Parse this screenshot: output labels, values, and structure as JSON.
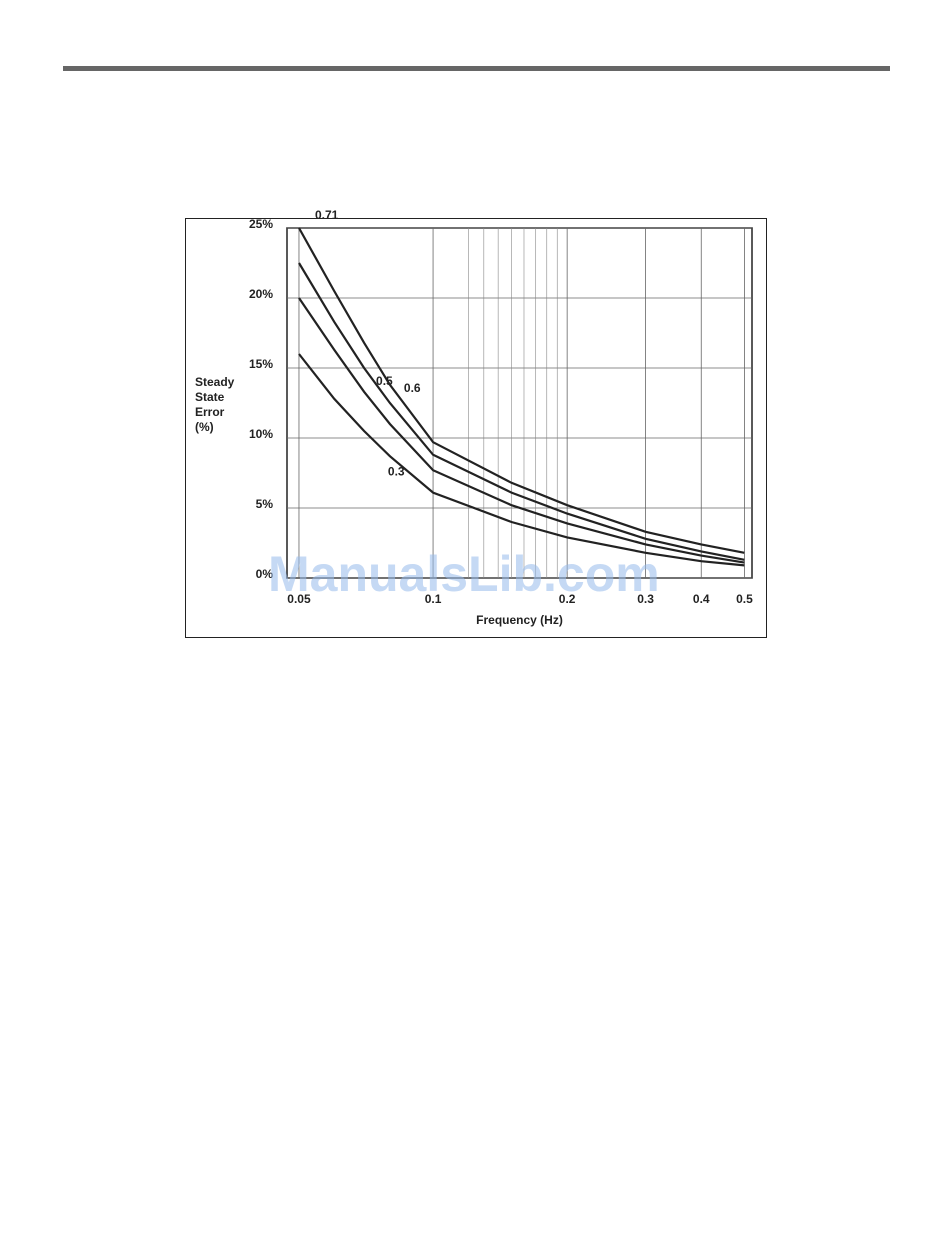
{
  "watermark": "ManualsLib.com",
  "chart_data": {
    "type": "line",
    "x_label": "Frequency (Hz)",
    "y_label": "Steady State Error (%)",
    "x": [
      0.05,
      0.06,
      0.07,
      0.08,
      0.1,
      0.15,
      0.2,
      0.3,
      0.4,
      0.5
    ],
    "series": [
      {
        "name": "0.71",
        "color": "#222222",
        "values": [
          25,
          20.5,
          16.8,
          13.8,
          9.7,
          6.8,
          5.2,
          3.3,
          2.4,
          1.8
        ]
      },
      {
        "name": "0.6",
        "color": "#222222",
        "values": [
          22.5,
          18.3,
          15,
          12.5,
          8.8,
          6.1,
          4.6,
          2.8,
          1.9,
          1.3
        ]
      },
      {
        "name": "0.5",
        "color": "#222222",
        "values": [
          20,
          16.3,
          13.3,
          11,
          7.7,
          5.2,
          3.9,
          2.4,
          1.6,
          1.1
        ]
      },
      {
        "name": "0.3",
        "color": "#222222",
        "values": [
          16,
          12.8,
          10.5,
          8.7,
          6.1,
          4,
          2.9,
          1.8,
          1.2,
          0.9
        ]
      }
    ],
    "xlog": true,
    "xlim": [
      0.047,
      0.52
    ],
    "xticks": [
      0.05,
      0.1,
      0.2,
      0.3,
      0.4,
      0.5
    ],
    "xminor": [
      0.12,
      0.13,
      0.14,
      0.15,
      0.16,
      0.17,
      0.18,
      0.19
    ],
    "ylim": [
      0,
      25
    ],
    "yticks": [
      {
        "value": 0,
        "label": "0%"
      },
      {
        "value": 5,
        "label": "5%"
      },
      {
        "value": 10,
        "label": "10%"
      },
      {
        "value": 15,
        "label": "15%"
      },
      {
        "value": 20,
        "label": "20%"
      },
      {
        "value": 25,
        "label": "25%"
      }
    ],
    "grid": true
  }
}
